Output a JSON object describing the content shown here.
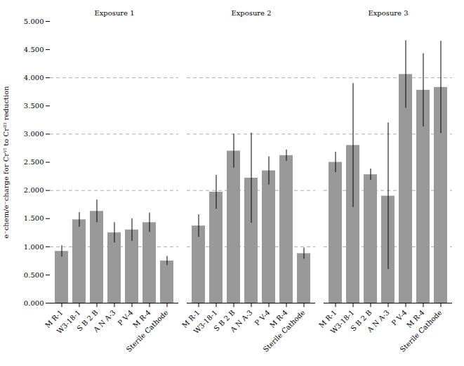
{
  "chart_data": {
    "type": "bar",
    "ylabel": "e⁻chem/e⁻charge for Crⱽᴵ to Crᴵᴵᴵ reduction",
    "categories": [
      "M R-1",
      "W3-18-1",
      "S B 2 B",
      "A N A-3",
      "P V-4",
      "M R-4",
      "Sterile Cathode"
    ],
    "series": [
      {
        "name": "Exposure 1",
        "values": [
          0.92,
          1.48,
          1.63,
          1.25,
          1.3,
          1.43,
          0.75
        ],
        "errors": [
          0.1,
          0.13,
          0.2,
          0.18,
          0.2,
          0.17,
          0.08
        ]
      },
      {
        "name": "Exposure 2",
        "values": [
          1.37,
          1.97,
          2.7,
          2.22,
          2.35,
          2.62,
          0.88
        ],
        "errors": [
          0.2,
          0.3,
          0.3,
          0.8,
          0.25,
          0.1,
          0.1
        ]
      },
      {
        "name": "Exposure 3",
        "values": [
          2.5,
          2.8,
          2.28,
          1.9,
          4.06,
          3.78,
          3.83
        ],
        "errors": [
          0.18,
          1.1,
          0.1,
          1.3,
          0.6,
          0.65,
          0.82
        ]
      }
    ],
    "color": "#999999",
    "ylim": [
      0.0,
      5.0
    ],
    "yticks": [
      {
        "value": 0.0,
        "label": "0.000"
      },
      {
        "value": 0.5,
        "label": "0.500"
      },
      {
        "value": 1.0,
        "label": "1.000"
      },
      {
        "value": 1.5,
        "label": "1.500"
      },
      {
        "value": 2.0,
        "label": "2.000"
      },
      {
        "value": 2.5,
        "label": "2.500"
      },
      {
        "value": 3.0,
        "label": "3.000"
      },
      {
        "value": 3.5,
        "label": "3.500"
      },
      {
        "value": 4.0,
        "label": "4.000"
      },
      {
        "value": 4.5,
        "label": "4.500"
      },
      {
        "value": 5.0,
        "label": "5.000"
      }
    ],
    "hlines": [
      1.0,
      2.0,
      3.0,
      4.0
    ]
  }
}
